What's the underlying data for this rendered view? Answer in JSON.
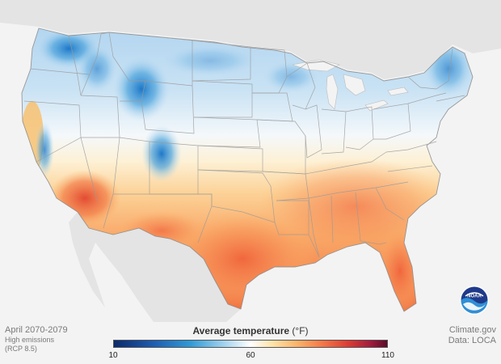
{
  "map": {
    "period": "April 2070-2079",
    "scenario_line1": "High emissions",
    "scenario_line2": "(RCP 8.5)",
    "source_line1": "Climate.gov",
    "source_line2": "Data: LOCA",
    "logo_text": "NOAA"
  },
  "legend": {
    "title": "Average temperature",
    "unit": "(°F)",
    "min_label": "10",
    "mid_label": "60",
    "max_label": "110",
    "min_value": 10,
    "mid_value": 60,
    "max_value": 110,
    "colors": {
      "cold": "#0b2a6b",
      "cool": "#2f9ad6",
      "neutral": "#ffffff",
      "warm": "#fbb36a",
      "hot": "#db3b34",
      "extreme": "#5c0b2b"
    }
  }
}
